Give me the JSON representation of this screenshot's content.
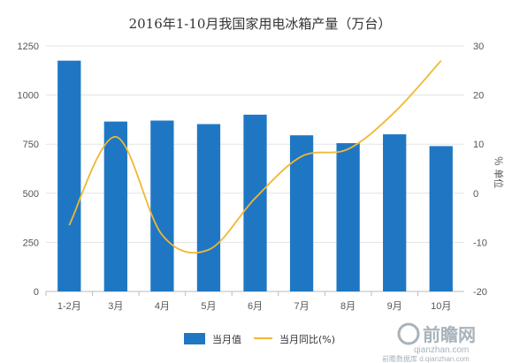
{
  "chart_data": {
    "type": "bar",
    "title": "2016年1-10月我国家用电冰箱产量（万台）",
    "categories": [
      "1-2月",
      "3月",
      "4月",
      "5月",
      "6月",
      "7月",
      "8月",
      "9月",
      "10月"
    ],
    "series": [
      {
        "name": "当月值",
        "type": "bar",
        "axis": "left",
        "color": "#1f77c4",
        "values": [
          1175,
          865,
          870,
          852,
          900,
          795,
          755,
          800,
          740
        ]
      },
      {
        "name": "当月同比(%)",
        "type": "line",
        "axis": "right",
        "color": "#f0b733",
        "values": [
          -6.5,
          11.5,
          -8.5,
          -11.5,
          -1.0,
          7.5,
          9.0,
          16.5,
          27.0
        ]
      }
    ],
    "y_left": {
      "ylim": [
        0,
        1250
      ],
      "ticks": [
        0,
        250,
        500,
        750,
        1000,
        1250
      ]
    },
    "y_right": {
      "label": "％ 单位",
      "ylim": [
        -20,
        30
      ],
      "ticks": [
        -20,
        -10,
        0,
        10,
        20,
        30
      ]
    },
    "grid": true,
    "legend_position": "bottom"
  },
  "watermark": {
    "brand": "前瞻网",
    "domain": "qianzhan.com",
    "sub": "前瞻数据库 d.qianzhan.com"
  }
}
